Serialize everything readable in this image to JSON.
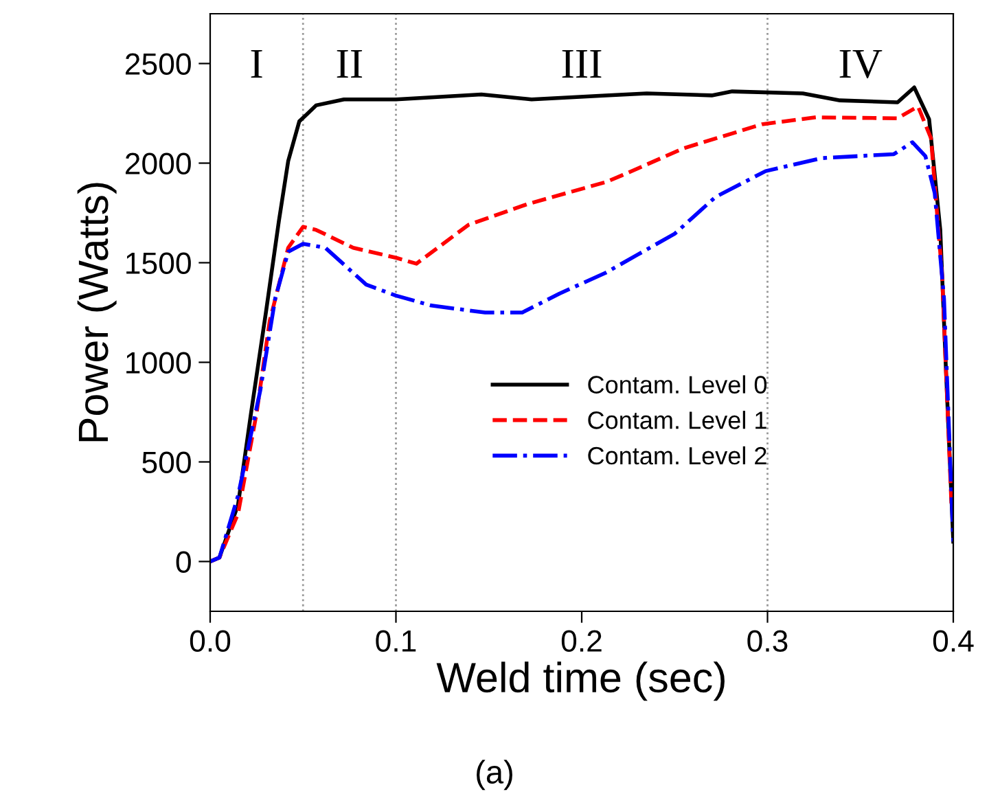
{
  "chart_data": {
    "type": "line",
    "xlabel": "Weld time (sec)",
    "ylabel": "Power (Watts)",
    "xlim": [
      0,
      0.4
    ],
    "xticks": [
      {
        "value": 0,
        "label": "0.0"
      },
      0.1,
      0.2,
      0.3,
      0.4
    ],
    "ylim": [
      -250,
      2750
    ],
    "yticks": [
      0,
      500,
      1000,
      1500,
      2000,
      2500
    ],
    "grid": false,
    "legend": "bottom right",
    "series": [
      {
        "name": "Contam. Level 0",
        "color": "#000000",
        "line_style": "solid",
        "x": [
          0,
          0.005,
          0.015,
          0.022,
          0.03,
          0.037,
          0.042,
          0.048,
          0.052,
          0.057,
          0.072,
          0.1,
          0.146,
          0.173,
          0.213,
          0.235,
          0.27,
          0.281,
          0.319,
          0.339,
          0.37,
          0.379,
          0.387,
          0.393,
          0.396,
          0.4
        ],
        "values": [
          0,
          20,
          285,
          745,
          1250,
          1710,
          2010,
          2210,
          2245,
          2290,
          2320,
          2320,
          2345,
          2320,
          2340,
          2350,
          2340,
          2360,
          2350,
          2315,
          2305,
          2380,
          2220,
          1665,
          975,
          100
        ]
      },
      {
        "name": "Contam. Level 1",
        "color": "#ff0000",
        "line_style": "dashed",
        "x": [
          0,
          0.005,
          0.015,
          0.025,
          0.032,
          0.042,
          0.05,
          0.057,
          0.077,
          0.1,
          0.111,
          0.139,
          0.171,
          0.213,
          0.222,
          0.255,
          0.297,
          0.326,
          0.37,
          0.381,
          0.388,
          0.394,
          0.399
        ],
        "values": [
          0,
          20,
          240,
          745,
          1205,
          1575,
          1680,
          1665,
          1575,
          1525,
          1495,
          1690,
          1795,
          1905,
          1940,
          2075,
          2195,
          2230,
          2225,
          2285,
          2125,
          1435,
          285
        ]
      },
      {
        "name": "Contam. Level 2",
        "color": "#0000ff",
        "line_style": "dashdot",
        "x": [
          0,
          0.005,
          0.015,
          0.027,
          0.035,
          0.042,
          0.05,
          0.062,
          0.084,
          0.1,
          0.119,
          0.148,
          0.168,
          0.188,
          0.213,
          0.23,
          0.25,
          0.272,
          0.299,
          0.329,
          0.368,
          0.378,
          0.385,
          0.39,
          0.395,
          0.4
        ],
        "values": [
          0,
          20,
          330,
          860,
          1320,
          1555,
          1595,
          1575,
          1390,
          1335,
          1285,
          1250,
          1250,
          1345,
          1450,
          1540,
          1645,
          1830,
          1960,
          2025,
          2045,
          2105,
          2035,
          1850,
          1320,
          100
        ]
      }
    ],
    "ref_lines": [
      {
        "axis": "x",
        "value": 0.05,
        "color": "#999999",
        "line_style": "dotted"
      },
      {
        "axis": "x",
        "value": 0.1,
        "color": "#999999",
        "line_style": "dotted"
      },
      {
        "axis": "x",
        "value": 0.3,
        "color": "#999999",
        "line_style": "dotted"
      }
    ],
    "annotations": [
      "I",
      "II",
      "III",
      "IV",
      "(a)"
    ]
  }
}
